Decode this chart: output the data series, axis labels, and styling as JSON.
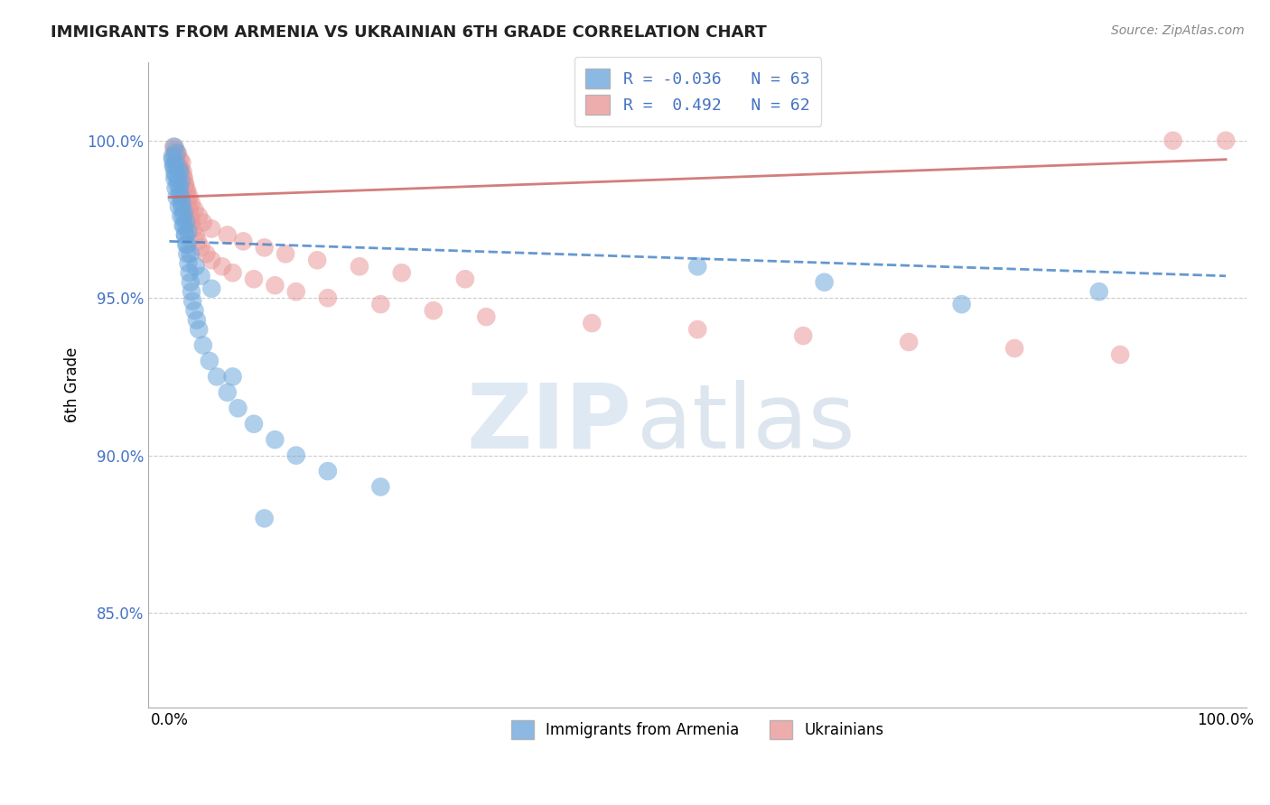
{
  "title": "IMMIGRANTS FROM ARMENIA VS UKRAINIAN 6TH GRADE CORRELATION CHART",
  "source_text": "Source: ZipAtlas.com",
  "ylabel": "6th Grade",
  "y_ticks": [
    85.0,
    90.0,
    95.0,
    100.0
  ],
  "y_tick_labels": [
    "85.0%",
    "90.0%",
    "95.0%",
    "100.0%"
  ],
  "x_range": [
    -2.0,
    102.0
  ],
  "y_range": [
    82.0,
    102.5
  ],
  "legend_label_blue": "R = -0.036   N = 63",
  "legend_label_pink": "R =  0.492   N = 62",
  "legend_label_blue_scatter": "Immigrants from Armenia",
  "legend_label_pink_scatter": "Ukrainians",
  "blue_color": "#6fa8dc",
  "pink_color": "#ea9999",
  "blue_line_color": "#4a86c8",
  "pink_line_color": "#cc6666",
  "background_color": "#ffffff",
  "blue_scatter_x": [
    0.3,
    0.4,
    0.5,
    0.5,
    0.6,
    0.7,
    0.8,
    0.9,
    1.0,
    1.0,
    1.1,
    1.1,
    1.2,
    1.3,
    1.4,
    1.5,
    1.6,
    1.7,
    1.8,
    1.9,
    2.0,
    2.1,
    2.2,
    2.4,
    2.6,
    2.8,
    3.2,
    3.8,
    4.5,
    5.5,
    6.5,
    8.0,
    10.0,
    12.0,
    15.0,
    20.0,
    50.0,
    62.0,
    75.0,
    88.0,
    0.4,
    0.6,
    0.8,
    1.0,
    1.2,
    1.4,
    1.6,
    1.8,
    0.3,
    0.5,
    0.6,
    0.7,
    0.9,
    1.1,
    1.3,
    1.5,
    1.7,
    2.0,
    2.5,
    3.0,
    4.0,
    6.0,
    9.0
  ],
  "blue_scatter_y": [
    99.5,
    99.2,
    99.8,
    99.0,
    99.3,
    99.6,
    98.8,
    99.1,
    98.5,
    99.0,
    98.2,
    98.7,
    97.9,
    97.6,
    97.3,
    97.0,
    96.7,
    96.4,
    96.1,
    95.8,
    95.5,
    95.2,
    94.9,
    94.6,
    94.3,
    94.0,
    93.5,
    93.0,
    92.5,
    92.0,
    91.5,
    91.0,
    90.5,
    90.0,
    89.5,
    89.0,
    96.0,
    95.5,
    94.8,
    95.2,
    99.2,
    98.9,
    98.6,
    98.3,
    98.0,
    97.7,
    97.4,
    97.1,
    99.4,
    98.8,
    98.5,
    98.2,
    97.9,
    97.6,
    97.3,
    97.0,
    96.7,
    96.4,
    96.0,
    95.7,
    95.3,
    92.5,
    88.0
  ],
  "pink_scatter_x": [
    0.4,
    0.5,
    0.6,
    0.7,
    0.8,
    0.9,
    1.0,
    1.1,
    1.2,
    1.3,
    1.4,
    1.5,
    1.6,
    1.7,
    1.8,
    1.9,
    2.0,
    2.1,
    2.3,
    2.5,
    2.7,
    3.0,
    3.5,
    4.0,
    5.0,
    6.0,
    8.0,
    10.0,
    12.0,
    15.0,
    20.0,
    25.0,
    30.0,
    40.0,
    50.0,
    60.0,
    70.0,
    80.0,
    90.0,
    95.0,
    100.0,
    0.5,
    0.7,
    0.9,
    1.1,
    1.3,
    1.5,
    1.7,
    1.9,
    2.1,
    2.4,
    2.8,
    3.2,
    4.0,
    5.5,
    7.0,
    9.0,
    11.0,
    14.0,
    18.0,
    22.0,
    28.0
  ],
  "pink_scatter_y": [
    99.8,
    99.5,
    99.7,
    99.3,
    99.6,
    99.2,
    99.4,
    99.1,
    99.3,
    99.0,
    98.8,
    98.6,
    98.4,
    98.2,
    98.0,
    97.8,
    97.6,
    97.4,
    97.2,
    97.0,
    96.8,
    96.6,
    96.4,
    96.2,
    96.0,
    95.8,
    95.6,
    95.4,
    95.2,
    95.0,
    94.8,
    94.6,
    94.4,
    94.2,
    94.0,
    93.8,
    93.6,
    93.4,
    93.2,
    100.0,
    100.0,
    99.6,
    99.4,
    99.2,
    99.0,
    98.8,
    98.6,
    98.4,
    98.2,
    98.0,
    97.8,
    97.6,
    97.4,
    97.2,
    97.0,
    96.8,
    96.6,
    96.4,
    96.2,
    96.0,
    95.8,
    95.6
  ],
  "blue_trend_x": [
    0,
    100
  ],
  "blue_trend_y": [
    96.8,
    95.7
  ],
  "pink_trend_x": [
    0,
    100
  ],
  "pink_trend_y": [
    98.2,
    99.4
  ]
}
